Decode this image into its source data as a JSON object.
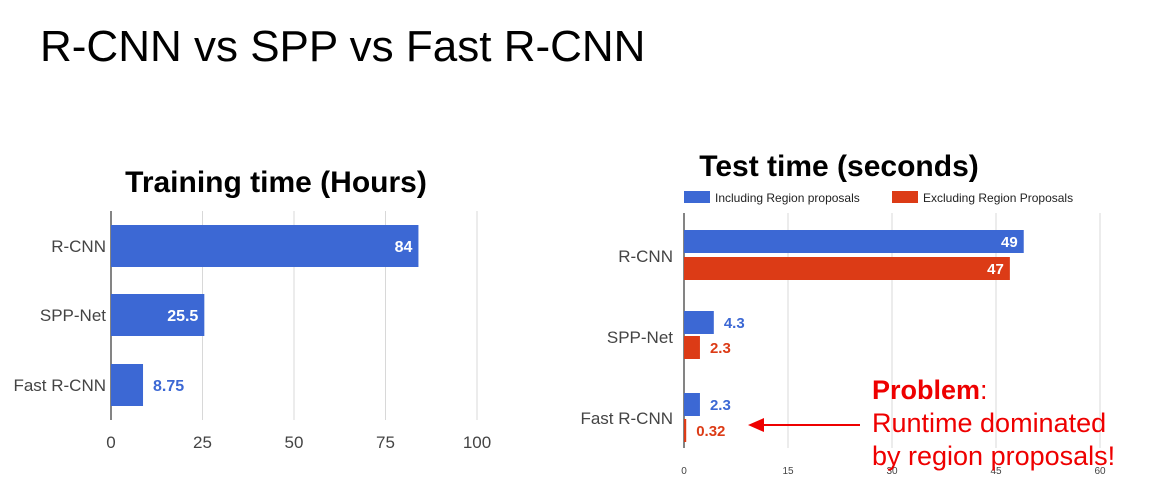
{
  "slide": {
    "title": "R-CNN vs SPP vs Fast R-CNN"
  },
  "colors": {
    "blue": "#3c68d4",
    "red": "#dc3b16",
    "annotation": "#ee0000",
    "grid": "#d8d8d8"
  },
  "chart_data": [
    {
      "type": "bar",
      "orientation": "horizontal",
      "title": "Training time (Hours)",
      "categories": [
        "R-CNN",
        "SPP-Net",
        "Fast R-CNN"
      ],
      "series": [
        {
          "values": [
            84,
            25.5,
            8.75
          ],
          "labels": [
            "84",
            "25.5",
            "8.75"
          ]
        }
      ],
      "xlim": [
        0,
        100
      ],
      "xticks": [
        "0",
        "25",
        "50",
        "75",
        "100"
      ],
      "grid": true
    },
    {
      "type": "bar",
      "orientation": "horizontal",
      "title": "Test time (seconds)",
      "categories": [
        "R-CNN",
        "SPP-Net",
        "Fast R-CNN"
      ],
      "series": [
        {
          "name": "Including Region proposals",
          "values": [
            49,
            4.3,
            2.3
          ],
          "labels": [
            "49",
            "4.3",
            "2.3"
          ]
        },
        {
          "name": "Excluding Region Proposals",
          "values": [
            47,
            2.3,
            0.32
          ],
          "labels": [
            "47",
            "2.3",
            "0.32"
          ]
        }
      ],
      "xlim": [
        0,
        60
      ],
      "xticks": [
        "0",
        "15",
        "30",
        "45",
        "60"
      ],
      "legend": "top",
      "grid": true
    }
  ],
  "annotation": {
    "heading": "Problem",
    "colon": ":",
    "line1": "Runtime dominated",
    "line2": "by region proposals!"
  }
}
